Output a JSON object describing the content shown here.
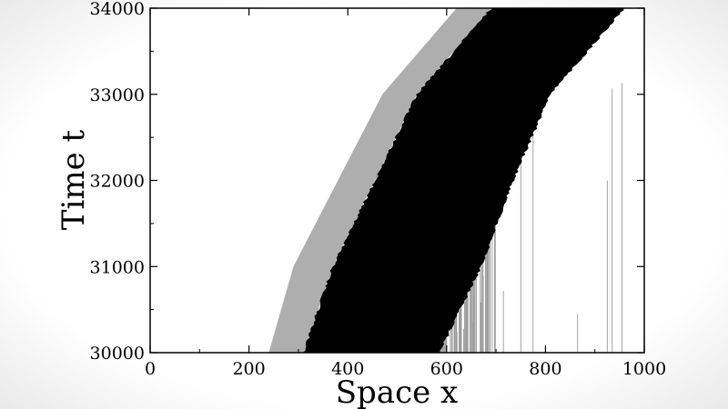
{
  "chart_data": {
    "type": "heatmap",
    "title": "",
    "xlabel": "Space x",
    "ylabel": "Time t",
    "xlim": [
      0,
      1000
    ],
    "ylim": [
      30000,
      34000
    ],
    "x_ticks": [
      0,
      200,
      400,
      600,
      800,
      1000
    ],
    "y_ticks": [
      30000,
      31000,
      32000,
      33000,
      34000
    ],
    "x_tick_labels": [
      "0",
      "200",
      "400",
      "600",
      "800",
      "1000"
    ],
    "y_tick_labels": [
      "30000",
      "31000",
      "32000",
      "33000",
      "34000"
    ],
    "grid": false,
    "jam_band": {
      "color": "#000000",
      "left_edge": [
        [
          310,
          30000
        ],
        [
          370,
          31000
        ],
        [
          455,
          32000
        ],
        [
          540,
          33000
        ],
        [
          690,
          34000
        ]
      ],
      "right_edge": [
        [
          585,
          30000
        ],
        [
          670,
          31000
        ],
        [
          735,
          32000
        ],
        [
          810,
          33000
        ],
        [
          960,
          34000
        ]
      ]
    },
    "gray_region": {
      "color": "#a0a0a0",
      "left_edge": [
        [
          240,
          30000
        ],
        [
          290,
          31000
        ],
        [
          380,
          32000
        ],
        [
          470,
          33000
        ],
        [
          620,
          34000
        ]
      ]
    },
    "colors": {
      "jam": "#000000",
      "gray_traces": "#9a9a9a",
      "background": "#ffffff",
      "axis": "#000000"
    }
  }
}
